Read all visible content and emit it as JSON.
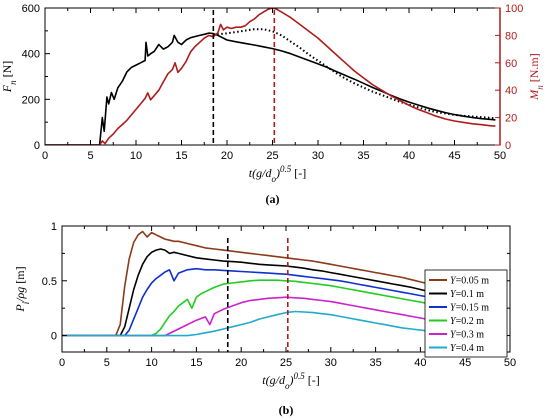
{
  "chart_data": [
    {
      "id": "a",
      "type": "line",
      "panel_label": "(a)",
      "xlabel": "t(g/d₀)^0.5 [-]",
      "xlabel_main": "t(g/d",
      "xlabel_sub": "o",
      "xlabel_close": ")",
      "xlabel_sup": "0.5",
      "xlabel_unit": " [-]",
      "ylabel_main": "F",
      "ylabel_sub": "n",
      "ylabel_unit": " [N]",
      "y2label_main": "M",
      "y2label_sub": "n",
      "y2label_unit": " [N.m]",
      "xlim": [
        0,
        50
      ],
      "ylim": [
        0,
        600
      ],
      "y2lim": [
        0,
        100
      ],
      "xticks": [
        "0",
        "5",
        "10",
        "15",
        "20",
        "25",
        "30",
        "35",
        "40",
        "45",
        "50"
      ],
      "yticks": [
        "0",
        "200",
        "400",
        "600"
      ],
      "y2ticks": [
        "0",
        "20",
        "40",
        "60",
        "80",
        "100"
      ],
      "vlines": [
        {
          "x": 18.5,
          "color": "#000000"
        },
        {
          "x": 25.2,
          "color": "#b01c1c"
        }
      ],
      "series": [
        {
          "axis": "left",
          "color": "#000000",
          "style": "solid",
          "x": [
            0,
            6,
            6.3,
            6.5,
            6.8,
            7,
            7.3,
            7.6,
            8,
            8.5,
            9,
            9.5,
            10,
            10.5,
            11,
            11.1,
            11.3,
            11.6,
            12,
            12.5,
            13,
            13.5,
            14,
            14.2,
            14.6,
            15,
            15.5,
            16,
            16.5,
            17,
            17.5,
            18,
            18.5,
            19,
            19.5,
            20,
            21,
            22,
            23,
            24,
            25,
            26,
            27,
            28,
            29,
            30,
            31,
            32,
            33,
            34,
            35,
            36,
            37,
            38,
            39,
            40,
            41,
            42,
            43,
            44,
            45,
            46,
            47,
            48,
            49,
            49.5
          ],
          "y": [
            0,
            0,
            120,
            60,
            210,
            180,
            230,
            200,
            250,
            280,
            320,
            340,
            350,
            360,
            370,
            450,
            390,
            400,
            410,
            440,
            420,
            430,
            450,
            480,
            450,
            440,
            460,
            470,
            475,
            480,
            485,
            490,
            488,
            480,
            470,
            460,
            452,
            445,
            438,
            430,
            422,
            412,
            400,
            385,
            370,
            355,
            340,
            322,
            305,
            288,
            270,
            252,
            235,
            218,
            202,
            188,
            175,
            163,
            152,
            142,
            133,
            126,
            120,
            115,
            112,
            110
          ]
        },
        {
          "axis": "right",
          "color": "#000000",
          "style": "dotted",
          "x": [
            18.5,
            19,
            20,
            21,
            22,
            23,
            24,
            25,
            26,
            27,
            28,
            29,
            30,
            31,
            32,
            33,
            34,
            35,
            36,
            37,
            38,
            39,
            40,
            41,
            42,
            43,
            44,
            45,
            46,
            47,
            48,
            49,
            49.5
          ],
          "y": [
            80.5,
            80.8,
            81.5,
            82.5,
            83.5,
            84.5,
            84.5,
            83,
            80,
            75.5,
            71,
            66,
            61.5,
            57,
            52.5,
            48.5,
            45,
            42,
            39,
            36.5,
            34,
            31.5,
            29.5,
            27.5,
            25.5,
            24,
            23,
            22,
            21.3,
            20.8,
            20.3,
            19.8,
            19.5
          ]
        },
        {
          "axis": "right",
          "color": "#b01c1c",
          "style": "solid",
          "x": [
            0,
            6,
            6.3,
            6.6,
            7,
            7.5,
            8,
            8.5,
            9,
            9.5,
            10,
            10.5,
            11,
            11.3,
            11.6,
            12,
            12.5,
            13,
            13.5,
            14,
            14.3,
            14.6,
            15,
            15.5,
            16,
            16.5,
            17,
            17.5,
            18,
            18.5,
            19,
            19.3,
            19.6,
            20,
            20.5,
            21,
            21.5,
            22,
            22.5,
            23,
            23.5,
            24,
            24.5,
            25,
            25.5,
            26,
            27,
            28,
            29,
            30,
            31,
            32,
            33,
            34,
            35,
            36,
            37,
            38,
            39,
            40,
            41,
            42,
            43,
            44,
            45,
            46,
            47,
            48,
            49,
            49.5
          ],
          "y": [
            0,
            0,
            3,
            1,
            5,
            8,
            12,
            15,
            18,
            22,
            26,
            30,
            34,
            38,
            33,
            36,
            40,
            46,
            52,
            55,
            60,
            53,
            56,
            61,
            68,
            72,
            75,
            78,
            80,
            79,
            82,
            88,
            84,
            86,
            85,
            86,
            86,
            87,
            90,
            92,
            95,
            97,
            99,
            100,
            99,
            97,
            93,
            88,
            83,
            78,
            72,
            66,
            60,
            54,
            49,
            44,
            40,
            36,
            32.5,
            29,
            26,
            23.5,
            21,
            19,
            17.5,
            16.5,
            15.5,
            14.8,
            14,
            13.8
          ]
        }
      ]
    },
    {
      "id": "b",
      "type": "line",
      "panel_label": "(b)",
      "xlabel": "t(g/d₀)^0.5 [-]",
      "xlabel_main": "t(g/d",
      "xlabel_sub": "o",
      "xlabel_close": ")",
      "xlabel_sup": "0.5",
      "xlabel_unit": " [-]",
      "ylabel_main": "P",
      "ylabel_sub": "i",
      "ylabel_rest": "/ρg",
      "ylabel_unit": " [m]",
      "xlim": [
        0,
        50
      ],
      "ylim": [
        -0.15,
        1.0
      ],
      "xticks": [
        "0",
        "5",
        "10",
        "15",
        "20",
        "25",
        "30",
        "35",
        "40",
        "45",
        "50"
      ],
      "yticks": [
        "0",
        "0.5",
        "1"
      ],
      "ytick_values": [
        0,
        0.5,
        1
      ],
      "vlines": [
        {
          "x": 18.5,
          "color": "#000000"
        },
        {
          "x": 25.2,
          "color": "#b01c1c"
        }
      ],
      "legend_position": "lower-right",
      "series": [
        {
          "name": "Y=0.05 m",
          "var": "Y",
          "val": "=0.05 m",
          "color": "#8b3a1a",
          "x": [
            0,
            6,
            6.5,
            7,
            7.5,
            8,
            8.5,
            9,
            9.5,
            10,
            10.5,
            11,
            11.5,
            12,
            12.5,
            13,
            14,
            15,
            16,
            17,
            18,
            19,
            20,
            21,
            22,
            23,
            24,
            25,
            26,
            27,
            28,
            29,
            30,
            31,
            32,
            33,
            34,
            35,
            36,
            37,
            38,
            39,
            40,
            41,
            42,
            43,
            44,
            45
          ],
          "y": [
            0,
            0,
            0.1,
            0.45,
            0.7,
            0.85,
            0.92,
            0.95,
            0.9,
            0.94,
            0.92,
            0.9,
            0.88,
            0.87,
            0.86,
            0.86,
            0.84,
            0.82,
            0.8,
            0.79,
            0.78,
            0.77,
            0.76,
            0.75,
            0.74,
            0.73,
            0.72,
            0.71,
            0.7,
            0.69,
            0.68,
            0.665,
            0.65,
            0.635,
            0.62,
            0.605,
            0.59,
            0.575,
            0.56,
            0.545,
            0.53,
            0.51,
            0.49,
            0.47,
            0.45,
            0.43,
            0.41,
            0.39
          ]
        },
        {
          "name": "Y=0.1 m",
          "var": "Y",
          "val": "=0.1 m",
          "color": "#000000",
          "x": [
            0,
            6.5,
            7,
            7.5,
            8,
            8.5,
            9,
            9.5,
            10,
            10.5,
            11,
            11.5,
            12,
            12.5,
            13,
            14,
            15,
            16,
            17,
            18,
            19,
            20,
            21,
            22,
            23,
            24,
            25,
            26,
            27,
            28,
            29,
            30,
            31,
            32,
            33,
            34,
            35,
            36,
            37,
            38,
            39,
            40,
            41,
            42,
            43,
            44,
            45
          ],
          "y": [
            0,
            0,
            0.08,
            0.25,
            0.42,
            0.55,
            0.65,
            0.72,
            0.76,
            0.78,
            0.79,
            0.78,
            0.75,
            0.76,
            0.75,
            0.73,
            0.71,
            0.7,
            0.69,
            0.68,
            0.675,
            0.67,
            0.66,
            0.65,
            0.645,
            0.64,
            0.635,
            0.625,
            0.615,
            0.6,
            0.59,
            0.575,
            0.56,
            0.545,
            0.53,
            0.515,
            0.5,
            0.485,
            0.47,
            0.455,
            0.44,
            0.42,
            0.4,
            0.385,
            0.37,
            0.355,
            0.34
          ]
        },
        {
          "name": "Y=0.15 m",
          "var": "Y",
          "val": "=0.15 m",
          "color": "#1030d0",
          "x": [
            0,
            7,
            7.5,
            8,
            8.5,
            9,
            9.5,
            10,
            10.5,
            11,
            11.5,
            12,
            12.5,
            13,
            14,
            15,
            16,
            17,
            18,
            19,
            20,
            21,
            22,
            23,
            24,
            25,
            26,
            27,
            28,
            29,
            30,
            31,
            32,
            33,
            34,
            35,
            36,
            37,
            38,
            39,
            40,
            41,
            42,
            43,
            44,
            45
          ],
          "y": [
            0,
            0,
            0.05,
            0.15,
            0.25,
            0.35,
            0.42,
            0.48,
            0.52,
            0.55,
            0.58,
            0.6,
            0.5,
            0.57,
            0.6,
            0.61,
            0.6,
            0.6,
            0.595,
            0.59,
            0.585,
            0.58,
            0.575,
            0.57,
            0.565,
            0.56,
            0.55,
            0.54,
            0.53,
            0.52,
            0.51,
            0.5,
            0.485,
            0.47,
            0.455,
            0.44,
            0.425,
            0.41,
            0.395,
            0.38,
            0.365,
            0.35,
            0.335,
            0.32,
            0.305,
            0.29
          ]
        },
        {
          "name": "Y=0.2 m",
          "var": "Y",
          "val": "=0.2 m",
          "color": "#22cc22",
          "x": [
            0,
            10,
            10.5,
            11,
            11.5,
            12,
            12.5,
            13,
            13.5,
            14,
            14.5,
            15,
            15.5,
            16,
            17,
            18,
            19,
            20,
            21,
            22,
            23,
            24,
            25,
            26,
            27,
            28,
            29,
            30,
            31,
            32,
            33,
            34,
            35,
            36,
            37,
            38,
            39,
            40,
            41,
            42,
            43,
            44,
            45
          ],
          "y": [
            0,
            0,
            0.02,
            0.06,
            0.12,
            0.18,
            0.22,
            0.27,
            0.3,
            0.33,
            0.25,
            0.35,
            0.38,
            0.4,
            0.44,
            0.47,
            0.48,
            0.49,
            0.5,
            0.505,
            0.505,
            0.505,
            0.5,
            0.495,
            0.485,
            0.475,
            0.465,
            0.455,
            0.44,
            0.425,
            0.41,
            0.395,
            0.38,
            0.365,
            0.35,
            0.335,
            0.32,
            0.305,
            0.29,
            0.27,
            0.25,
            0.23,
            0.21
          ]
        },
        {
          "name": "Y=0.3 m",
          "var": "Y",
          "val": "=0.3 m",
          "color": "#cc22cc",
          "x": [
            0,
            11.5,
            12,
            13,
            14,
            15,
            16,
            16.5,
            17,
            18,
            19,
            20,
            21,
            22,
            23,
            24,
            25,
            26,
            27,
            28,
            29,
            30,
            31,
            32,
            33,
            34,
            35,
            36,
            37,
            38,
            39,
            40,
            41,
            42,
            43,
            44,
            45
          ],
          "y": [
            0,
            0,
            0.02,
            0.06,
            0.1,
            0.14,
            0.17,
            0.1,
            0.2,
            0.24,
            0.27,
            0.3,
            0.32,
            0.33,
            0.34,
            0.345,
            0.35,
            0.345,
            0.34,
            0.33,
            0.32,
            0.31,
            0.295,
            0.28,
            0.265,
            0.25,
            0.235,
            0.22,
            0.205,
            0.19,
            0.175,
            0.16,
            0.145,
            0.13,
            0.12,
            0.11,
            0.1
          ]
        },
        {
          "name": "Y=0.4 m",
          "var": "Y",
          "val": "=0.4 m",
          "color": "#22aacc",
          "x": [
            0,
            14,
            15,
            16,
            17,
            18,
            19,
            20,
            21,
            22,
            23,
            24,
            25,
            26,
            27,
            28,
            29,
            30,
            31,
            32,
            33,
            34,
            35,
            36,
            37,
            38,
            39,
            40,
            41,
            42,
            43,
            44,
            45
          ],
          "y": [
            0,
            0,
            0.01,
            0.025,
            0.04,
            0.06,
            0.08,
            0.1,
            0.12,
            0.15,
            0.17,
            0.19,
            0.21,
            0.22,
            0.215,
            0.21,
            0.2,
            0.19,
            0.175,
            0.16,
            0.145,
            0.13,
            0.115,
            0.1,
            0.085,
            0.07,
            0.06,
            0.05,
            0.04,
            0.03,
            0.02,
            0.01,
            0.005
          ]
        }
      ]
    }
  ]
}
